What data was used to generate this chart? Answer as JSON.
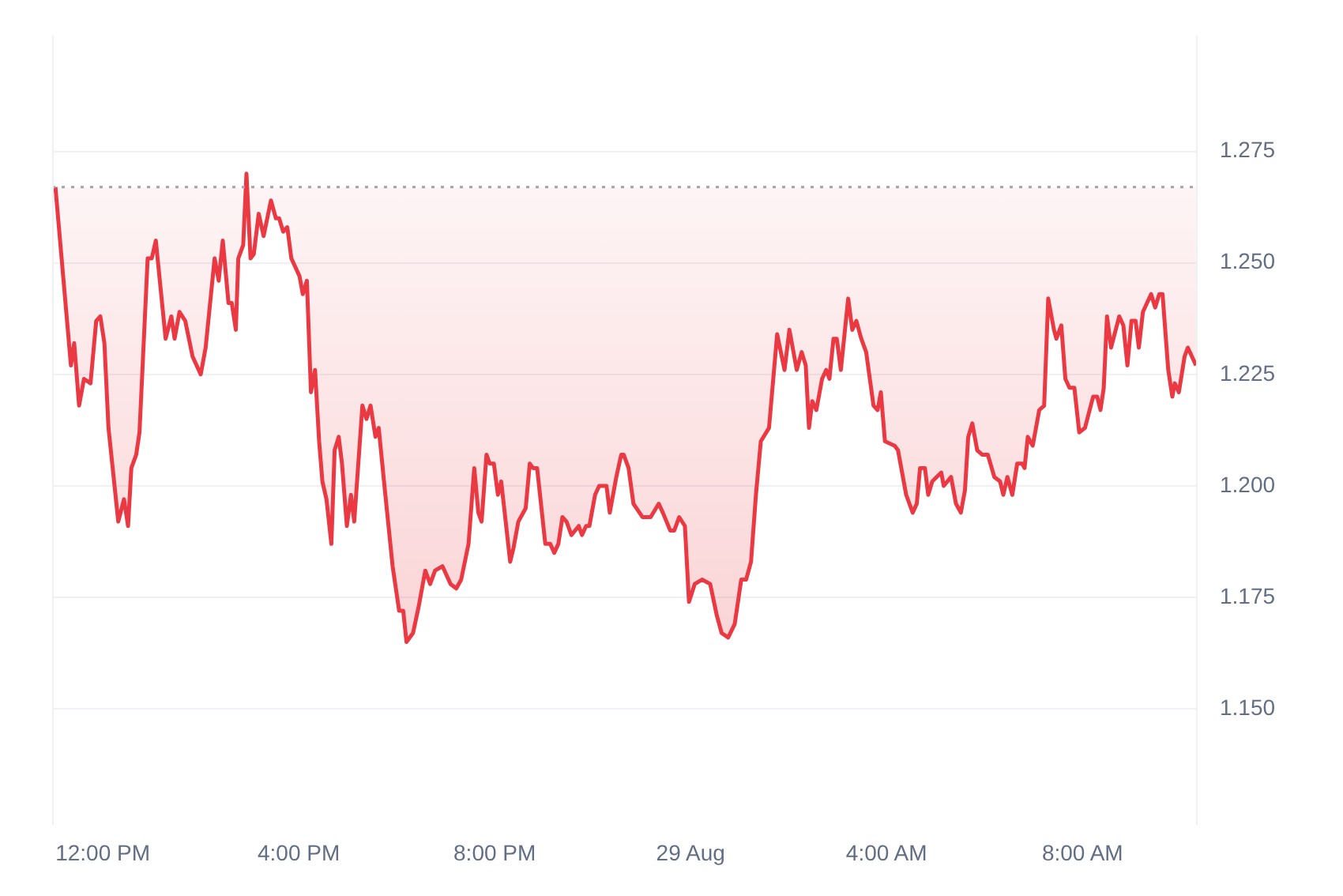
{
  "chart_data": {
    "type": "line",
    "x": [
      "--08-28T11:02",
      "--08-28T11:21",
      "--08-28T11:25",
      "--08-28T11:31",
      "--08-28T11:37",
      "--08-28T11:45",
      "--08-28T11:52",
      "--08-28T11:57",
      "--08-28T12:02",
      "--08-28T12:07",
      "--08-28T12:19",
      "--08-28T12:26",
      "--08-28T12:31",
      "--08-28T12:35",
      "--08-28T12:41",
      "--08-28T12:45",
      "--08-28T12:55",
      "--08-28T13:00",
      "--08-28T13:05",
      "--08-28T13:17",
      "--08-28T13:24",
      "--08-28T13:28",
      "--08-28T13:34",
      "--08-28T13:41",
      "--08-28T13:50",
      "--08-28T14:00",
      "--08-28T14:06",
      "--08-28T14:17",
      "--08-28T14:22",
      "--08-28T14:27",
      "--08-28T14:34",
      "--08-28T14:38",
      "--08-28T14:43",
      "--08-28T14:46",
      "--08-28T14:52",
      "--08-28T14:56",
      "--08-28T15:01",
      "--08-28T15:05",
      "--08-28T15:11",
      "--08-28T15:17",
      "--08-28T15:26",
      "--08-28T15:32",
      "--08-28T15:36",
      "--08-28T15:41",
      "--08-28T15:46",
      "--08-28T15:51",
      "--08-28T16:01",
      "--08-28T16:05",
      "--08-28T16:10",
      "--08-28T16:15",
      "--08-28T16:20",
      "--08-28T16:25",
      "--08-28T16:29",
      "--08-28T16:34",
      "--08-28T16:40",
      "--08-28T16:44",
      "--08-28T16:49",
      "--08-28T16:53",
      "--08-28T16:59",
      "--08-28T17:04",
      "--08-28T17:08",
      "--08-28T17:18",
      "--08-28T17:23",
      "--08-28T17:28",
      "--08-28T17:34",
      "--08-28T17:38",
      "--08-28T17:45",
      "--08-28T17:55",
      "--08-28T18:03",
      "--08-28T18:08",
      "--08-28T18:12",
      "--08-28T18:20",
      "--08-28T18:27",
      "--08-28T18:35",
      "--08-28T18:41",
      "--08-28T18:47",
      "--08-28T18:56",
      "--08-28T19:06",
      "--08-28T19:13",
      "--08-28T19:19",
      "--08-28T19:28",
      "--08-28T19:35",
      "--08-28T19:40",
      "--08-28T19:44",
      "--08-28T19:50",
      "--08-28T19:54",
      "--08-28T19:59",
      "--08-28T20:04",
      "--08-28T20:08",
      "--08-28T20:19",
      "--08-28T20:23",
      "--08-28T20:29",
      "--08-28T20:38",
      "--08-28T20:43",
      "--08-28T20:47",
      "--08-28T20:52",
      "--08-28T21:02",
      "--08-28T21:08",
      "--08-28T21:13",
      "--08-28T21:18",
      "--08-28T21:23",
      "--08-28T21:28",
      "--08-28T21:34",
      "--08-28T21:43",
      "--08-28T21:47",
      "--08-28T21:52",
      "--08-28T21:56",
      "--08-28T22:03",
      "--08-28T22:08",
      "--08-28T22:13",
      "--08-28T22:17",
      "--08-28T22:21",
      "--08-28T22:29",
      "--08-28T22:35",
      "--08-28T22:38",
      "--08-28T22:44",
      "--08-28T22:50",
      "--08-28T23:01",
      "--08-28T23:11",
      "--08-28T23:21",
      "--08-28T23:26",
      "--08-28T23:35",
      "--08-28T23:40",
      "--08-28T23:46",
      "--08-28T23:53",
      "--08-28T23:58",
      "--08-29T00:05",
      "--08-29T00:14",
      "--08-29T00:24",
      "--08-29T00:32",
      "--08-29T00:38",
      "--08-29T00:46",
      "--08-29T00:54",
      "--08-29T01:02",
      "--08-29T01:08",
      "--08-29T01:14",
      "--08-29T01:20",
      "--08-29T01:26",
      "--08-29T01:36",
      "--08-29T01:46",
      "--08-29T01:55",
      "--08-29T02:01",
      "--08-29T02:10",
      "--08-29T02:16",
      "--08-29T02:21",
      "--08-29T02:25",
      "--08-29T02:29",
      "--08-29T02:34",
      "--08-29T02:41",
      "--08-29T02:46",
      "--08-29T02:50",
      "--08-29T02:55",
      "--08-29T02:59",
      "--08-29T03:04",
      "--08-29T03:13",
      "--08-29T03:18",
      "--08-29T03:23",
      "--08-29T03:29",
      "--08-29T03:35",
      "--08-29T03:44",
      "--08-29T03:49",
      "--08-29T03:53",
      "--08-29T03:58",
      "--08-29T04:10",
      "--08-29T04:14",
      "--08-29T04:24",
      "--08-29T04:32",
      "--08-29T04:37",
      "--08-29T04:41",
      "--08-29T04:47",
      "--08-29T04:51",
      "--08-29T04:56",
      "--08-29T05:07",
      "--08-29T05:10",
      "--08-29T05:19",
      "--08-29T05:25",
      "--08-29T05:31",
      "--08-29T05:36",
      "--08-29T05:40",
      "--08-29T05:45",
      "--08-29T05:51",
      "--08-29T05:57",
      "--08-29T06:04",
      "--08-29T06:12",
      "--08-29T06:19",
      "--08-29T06:23",
      "--08-29T06:28",
      "--08-29T06:34",
      "--08-29T06:40",
      "--08-29T06:46",
      "--08-29T06:49",
      "--08-29T06:53",
      "--08-29T06:59",
      "--08-29T07:07",
      "--08-29T07:13",
      "--08-29T07:18",
      "--08-29T07:25",
      "--08-29T07:28",
      "--08-29T07:34",
      "--08-29T07:39",
      "--08-29T07:44",
      "--08-29T07:50",
      "--08-29T07:56",
      "--08-29T08:03",
      "--08-29T08:13",
      "--08-29T08:18",
      "--08-29T08:22",
      "--08-29T08:26",
      "--08-29T08:30",
      "--08-29T08:35",
      "--08-29T08:45",
      "--08-29T08:50",
      "--08-29T08:55",
      "--08-29T09:00",
      "--08-29T09:05",
      "--08-29T09:09",
      "--08-29T09:14",
      "--08-29T09:24",
      "--08-29T09:29",
      "--08-29T09:34",
      "--08-29T09:38",
      "--08-29T09:45",
      "--08-29T09:50",
      "--08-29T09:53",
      "--08-29T09:58",
      "--08-29T10:05",
      "--08-29T10:09",
      "--08-29T10:19"
    ],
    "series": [
      {
        "color": "#ea3943",
        "values": [
          1.267,
          1.227,
          1.232,
          1.218,
          1.224,
          1.223,
          1.237,
          1.238,
          1.232,
          1.213,
          1.192,
          1.197,
          1.191,
          1.204,
          1.207,
          1.212,
          1.251,
          1.251,
          1.255,
          1.233,
          1.238,
          1.233,
          1.239,
          1.237,
          1.229,
          1.225,
          1.231,
          1.251,
          1.246,
          1.255,
          1.241,
          1.241,
          1.235,
          1.251,
          1.254,
          1.27,
          1.251,
          1.252,
          1.261,
          1.256,
          1.264,
          1.26,
          1.26,
          1.257,
          1.258,
          1.251,
          1.247,
          1.243,
          1.246,
          1.221,
          1.226,
          1.21,
          1.201,
          1.197,
          1.187,
          1.208,
          1.211,
          1.205,
          1.191,
          1.198,
          1.192,
          1.218,
          1.215,
          1.218,
          1.211,
          1.213,
          1.2,
          1.182,
          1.172,
          1.172,
          1.165,
          1.167,
          1.173,
          1.181,
          1.178,
          1.181,
          1.182,
          1.178,
          1.177,
          1.179,
          1.187,
          1.204,
          1.194,
          1.192,
          1.207,
          1.205,
          1.205,
          1.198,
          1.201,
          1.183,
          1.186,
          1.192,
          1.195,
          1.205,
          1.204,
          1.204,
          1.187,
          1.187,
          1.185,
          1.187,
          1.193,
          1.192,
          1.189,
          1.191,
          1.189,
          1.191,
          1.191,
          1.198,
          1.2,
          1.2,
          1.2,
          1.194,
          1.202,
          1.207,
          1.207,
          1.204,
          1.196,
          1.193,
          1.193,
          1.196,
          1.194,
          1.19,
          1.19,
          1.193,
          1.191,
          1.174,
          1.178,
          1.179,
          1.178,
          1.171,
          1.167,
          1.166,
          1.169,
          1.179,
          1.179,
          1.183,
          1.198,
          1.21,
          1.213,
          1.234,
          1.226,
          1.235,
          1.226,
          1.23,
          1.227,
          1.213,
          1.219,
          1.217,
          1.224,
          1.226,
          1.224,
          1.233,
          1.233,
          1.226,
          1.242,
          1.235,
          1.237,
          1.233,
          1.23,
          1.218,
          1.217,
          1.221,
          1.21,
          1.209,
          1.208,
          1.198,
          1.194,
          1.196,
          1.204,
          1.204,
          1.198,
          1.201,
          1.203,
          1.2,
          1.202,
          1.196,
          1.194,
          1.199,
          1.211,
          1.214,
          1.208,
          1.207,
          1.207,
          1.202,
          1.201,
          1.198,
          1.202,
          1.198,
          1.205,
          1.205,
          1.204,
          1.211,
          1.209,
          1.217,
          1.218,
          1.242,
          1.235,
          1.233,
          1.236,
          1.224,
          1.222,
          1.222,
          1.212,
          1.213,
          1.22,
          1.22,
          1.217,
          1.222,
          1.238,
          1.231,
          1.238,
          1.236,
          1.227,
          1.237,
          1.237,
          1.231,
          1.239,
          1.243,
          1.24,
          1.243,
          1.243,
          1.226,
          1.22,
          1.223,
          1.221,
          1.229,
          1.231,
          1.227
        ]
      }
    ],
    "xlim": [
      "--08-28T10:58",
      "--08-29T10:21"
    ],
    "xticks": [
      {
        "value": "--08-28T12:00",
        "label": "12:00 PM"
      },
      {
        "value": "--08-28T16:00",
        "label": "4:00 PM"
      },
      {
        "value": "--08-28T20:00",
        "label": "8:00 PM"
      },
      {
        "value": "--08-29T00:00",
        "label": "29 Aug"
      },
      {
        "value": "--08-29T04:00",
        "label": "4:00 AM"
      },
      {
        "value": "--08-29T08:00",
        "label": "8:00 AM"
      }
    ],
    "ylim": [
      1.124,
      1.301
    ],
    "yticks": [
      {
        "value": 1.15,
        "label": "1.150"
      },
      {
        "value": 1.175,
        "label": "1.175"
      },
      {
        "value": 1.2,
        "label": "1.200"
      },
      {
        "value": 1.225,
        "label": "1.225"
      },
      {
        "value": 1.25,
        "label": "1.250"
      },
      {
        "value": 1.275,
        "label": "1.275"
      }
    ],
    "ref_lines": [
      {
        "axis": "y",
        "value": 1.267,
        "color": "#a0a4ab",
        "line_style": "dotted"
      }
    ],
    "grid": "y",
    "legend": false
  }
}
